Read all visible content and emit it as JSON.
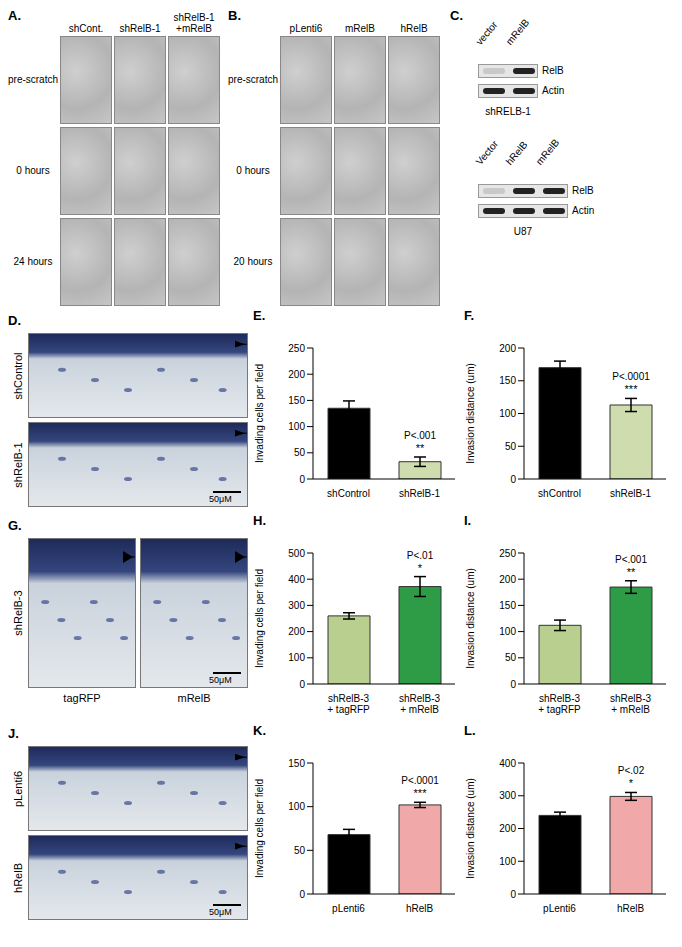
{
  "chart_data": [
    {
      "type": "bar",
      "title": "E.",
      "categories": [
        "shControl",
        "shRelB-1"
      ],
      "values": [
        135,
        33
      ],
      "errors": [
        14,
        9
      ],
      "colors": [
        "#000000",
        "#cfdcae"
      ],
      "ylabel": "Invading cells per field",
      "ylim": [
        0,
        250
      ],
      "yticks": [
        0,
        50,
        100,
        150,
        200,
        250
      ],
      "grid": false,
      "annotations": [
        "P<.001",
        "**"
      ]
    },
    {
      "type": "bar",
      "title": "F.",
      "categories": [
        "shControl",
        "shRelB-1"
      ],
      "values": [
        170,
        113
      ],
      "errors": [
        10,
        10
      ],
      "colors": [
        "#000000",
        "#cfdcae"
      ],
      "ylabel": "Invasion distance (um)",
      "ylim": [
        0,
        200
      ],
      "yticks": [
        0,
        50,
        100,
        150,
        200
      ],
      "grid": false,
      "annotations": [
        "P<.0001",
        "***"
      ]
    },
    {
      "type": "bar",
      "title": "H.",
      "categories": [
        "shRelB-3 + tagRFP",
        "shRelB-3 + mRelB"
      ],
      "values": [
        260,
        372
      ],
      "errors": [
        12,
        38
      ],
      "colors": [
        "#b9cf90",
        "#2e9b47"
      ],
      "ylabel": "Invading cells per field",
      "ylim": [
        0,
        500
      ],
      "yticks": [
        0,
        100,
        200,
        300,
        400,
        500
      ],
      "grid": false,
      "annotations": [
        "P<.01",
        "*"
      ]
    },
    {
      "type": "bar",
      "title": "I.",
      "categories": [
        "shRelB-3 + tagRFP",
        "shRelB-3 + mRelB"
      ],
      "values": [
        112,
        185
      ],
      "errors": [
        10,
        12
      ],
      "colors": [
        "#b9cf90",
        "#2e9b47"
      ],
      "ylabel": "Invasion distance (um)",
      "ylim": [
        0,
        250
      ],
      "yticks": [
        0,
        50,
        100,
        150,
        200,
        250
      ],
      "grid": false,
      "annotations": [
        "P<.001",
        "**"
      ]
    },
    {
      "type": "bar",
      "title": "K.",
      "categories": [
        "pLenti6",
        "hRelB"
      ],
      "values": [
        68,
        102
      ],
      "errors": [
        6,
        3
      ],
      "colors": [
        "#000000",
        "#f0a8a8"
      ],
      "ylabel": "Invading cells per field",
      "ylim": [
        0,
        150
      ],
      "yticks": [
        0,
        50,
        100,
        150
      ],
      "grid": false,
      "annotations": [
        "P<.0001",
        "***"
      ]
    },
    {
      "type": "bar",
      "title": "L.",
      "categories": [
        "pLenti6",
        "hRelB"
      ],
      "values": [
        240,
        298
      ],
      "errors": [
        10,
        12
      ],
      "colors": [
        "#000000",
        "#f0a8a8"
      ],
      "ylabel": "Invasion distance (um)",
      "ylim": [
        0,
        400
      ],
      "yticks": [
        0,
        100,
        200,
        300,
        400
      ],
      "grid": false,
      "annotations": [
        "P<.02",
        "*"
      ]
    }
  ],
  "images": {
    "A": {
      "label": "A.",
      "columns": [
        "shCont.",
        "shRelB-1",
        "shRelB-1\n+mRelB"
      ],
      "rows": [
        "pre-scratch",
        "0 hours",
        "24 hours"
      ]
    },
    "B": {
      "label": "B.",
      "columns": [
        "pLenti6",
        "mRelB",
        "hRelB"
      ],
      "rows": [
        "pre-scratch",
        "0 hours",
        "20 hours"
      ]
    },
    "C": {
      "label": "C.",
      "blots": [
        {
          "lanes": [
            "vector",
            "mRelB"
          ],
          "rows": [
            "RelB",
            "Actin"
          ],
          "caption": "shRELB-1"
        },
        {
          "lanes": [
            "Vector",
            "hRelB",
            "mRelB"
          ],
          "rows": [
            "RelB",
            "Actin"
          ],
          "caption": "U87"
        }
      ]
    },
    "D": {
      "label": "D.",
      "rows": [
        "shControl",
        "shRelB-1"
      ],
      "scale": "50μM"
    },
    "G": {
      "label": "G.",
      "side": "shRelB-3",
      "columns": [
        "tagRFP",
        "mRelB"
      ],
      "scale": "50μM"
    },
    "J": {
      "label": "J.",
      "rows": [
        "pLenti6",
        "hRelB"
      ],
      "scale": "50μM"
    }
  }
}
